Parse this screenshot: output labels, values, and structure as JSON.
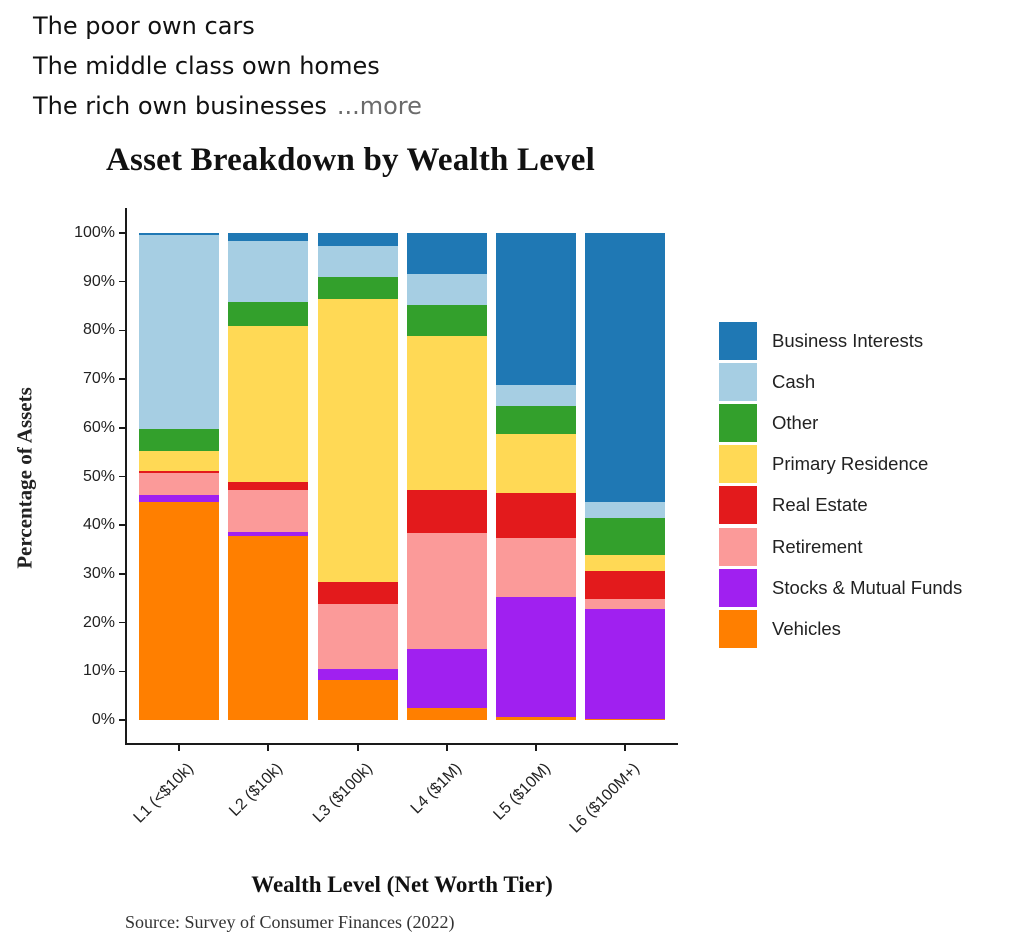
{
  "post": {
    "lines": [
      "The poor own cars",
      "The middle class own homes",
      "The rich own businesses"
    ],
    "more_label": "...more"
  },
  "chart_data": {
    "type": "bar",
    "stacked": true,
    "title": "Asset Breakdown by Wealth Level",
    "xlabel": "Wealth Level (Net Worth Tier)",
    "ylabel": "Percentage of Assets",
    "source": "Source: Survey of Consumer Finances (2022)",
    "ylim": [
      0,
      100
    ],
    "yticks": [
      "0%",
      "10%",
      "20%",
      "30%",
      "40%",
      "50%",
      "60%",
      "70%",
      "80%",
      "90%",
      "100%"
    ],
    "grid": false,
    "legend_position": "right",
    "categories": [
      "L1 (<$10k)",
      "L2 ($10k)",
      "L3 ($100k)",
      "L4 ($1M)",
      "L5 ($10M)",
      "L6 ($100M+)"
    ],
    "series": [
      {
        "name": "Vehicles",
        "color": "#ff7f00",
        "values": [
          44.8,
          37.8,
          8.2,
          2.5,
          0.6,
          0.3
        ]
      },
      {
        "name": "Stocks & Mutual Funds",
        "color": "#a020f0",
        "values": [
          1.4,
          0.8,
          2.3,
          12.1,
          24.7,
          22.5
        ]
      },
      {
        "name": "Retirement",
        "color": "#fb9a99",
        "values": [
          4.6,
          8.6,
          13.3,
          23.8,
          12.1,
          2.0
        ]
      },
      {
        "name": "Real Estate",
        "color": "#e31a1c",
        "values": [
          0.3,
          1.7,
          4.5,
          8.8,
          9.2,
          5.8
        ]
      },
      {
        "name": "Primary Residence",
        "color": "#ffd955",
        "values": [
          4.2,
          32.1,
          58.2,
          31.7,
          12.1,
          3.3
        ]
      },
      {
        "name": "Other",
        "color": "#33a02c",
        "values": [
          4.5,
          4.8,
          4.5,
          6.3,
          5.8,
          7.6
        ]
      },
      {
        "name": "Cash",
        "color": "#a6cee3",
        "values": [
          39.7,
          12.5,
          6.3,
          6.3,
          4.3,
          3.3
        ]
      },
      {
        "name": "Business Interests",
        "color": "#1f78b4",
        "values": [
          0.5,
          1.7,
          2.7,
          8.5,
          31.2,
          55.2
        ]
      }
    ],
    "legend": [
      "Business Interests",
      "Cash",
      "Other",
      "Primary Residence",
      "Real Estate",
      "Retirement",
      "Stocks & Mutual Funds",
      "Vehicles"
    ]
  }
}
